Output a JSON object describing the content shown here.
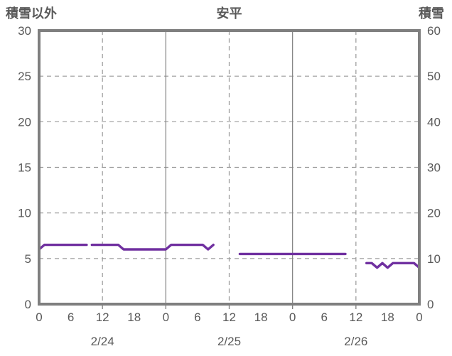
{
  "header": {
    "left_axis_title": "積雪以外",
    "chart_title": "安平",
    "right_axis_title": "積雪"
  },
  "chart_data": {
    "type": "line",
    "title": "安平",
    "legend": "none",
    "grid": "on",
    "left_axis": {
      "label": "積雪以外",
      "min": 0,
      "max": 30,
      "tick_step": 5,
      "ticks": [
        "0",
        "5",
        "10",
        "15",
        "20",
        "25",
        "30"
      ]
    },
    "right_axis": {
      "label": "積雪",
      "min": 0,
      "max": 60,
      "tick_step": 10,
      "ticks": [
        "0",
        "10",
        "20",
        "30",
        "40",
        "50",
        "60"
      ]
    },
    "x_axis": {
      "unit": "hours from 2/24 00:00",
      "min_hour": 0,
      "max_hour": 72,
      "tick_interval_hours": 6,
      "hour_tick_labels": [
        "0",
        "6",
        "12",
        "18",
        "0",
        "6",
        "12",
        "18",
        "0",
        "6",
        "12",
        "18",
        "0"
      ],
      "date_labels": [
        {
          "label": "2/24",
          "center_hour": 12
        },
        {
          "label": "2/25",
          "center_hour": 36
        },
        {
          "label": "2/26",
          "center_hour": 60
        }
      ],
      "dashed_gridline_hours": [
        12,
        36,
        60
      ],
      "solid_gridline_hours": [
        24,
        48
      ]
    },
    "horizontal_dashed_gridlines_left_values": [
      5,
      10,
      15,
      20,
      25
    ],
    "series": [
      {
        "name": "積雪",
        "axis": "right",
        "unit": "cm",
        "color": "#7030a0",
        "segments": [
          {
            "points": [
              [
                0,
                12
              ],
              [
                1,
                13
              ],
              [
                9,
                13
              ]
            ]
          },
          {
            "points": [
              [
                10,
                13
              ],
              [
                15,
                13
              ],
              [
                16,
                12
              ],
              [
                24,
                12
              ],
              [
                25,
                13
              ],
              [
                31,
                13
              ],
              [
                32,
                12
              ],
              [
                33,
                13
              ]
            ]
          },
          {
            "points": [
              [
                38,
                11
              ],
              [
                58,
                11
              ]
            ]
          },
          {
            "points": [
              [
                62,
                9
              ],
              [
                63,
                9
              ],
              [
                64,
                8
              ],
              [
                65,
                9
              ],
              [
                66,
                8
              ],
              [
                67,
                9
              ],
              [
                71,
                9
              ],
              [
                72,
                8
              ]
            ]
          }
        ]
      }
    ],
    "colors": {
      "border": "#7f7f7f",
      "grid_solid": "#808080",
      "grid_dashed": "#999999",
      "text": "#595959",
      "line": "#7030a0",
      "background": "#ffffff"
    }
  }
}
